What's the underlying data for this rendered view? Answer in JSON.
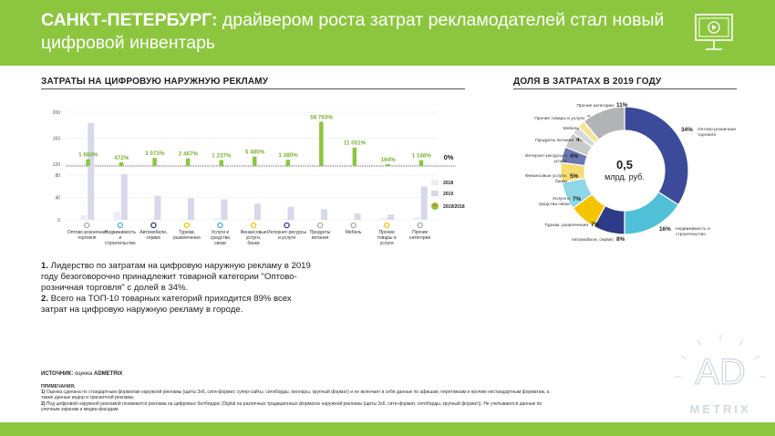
{
  "header": {
    "title_bold": "САНКТ-ПЕТЕРБУРГ:",
    "title_rest": " драйвером роста затрат рекламодателей стал новый цифровой инвентарь"
  },
  "left_section_title": "ЗАТРАТЫ НА ЦИФРОВУЮ НАРУЖНУЮ РЕКЛАМУ",
  "right_section_title": "ДОЛЯ В ЗАТРАТАХ В 2019 ГОДУ",
  "colors": {
    "accent_green": "#8cc63f",
    "bar_2018": "#eceef5",
    "bar_2019": "#d7d9ea",
    "navy": "#2e3b87",
    "teal": "#3fb5cc",
    "yellow": "#f5c400",
    "grey": "#a7a8ab"
  },
  "chart_data": [
    {
      "type": "bar",
      "title": "ЗАТРАТЫ НА ЦИФРОВУЮ НАРУЖНУЮ РЕКЛАМУ",
      "categories": [
        "Оптово-розничная торговля",
        "Недвижимость и строительство",
        "Автомобили, сервис",
        "Туризм, развлечения",
        "Услуги и средства связи",
        "Финансовые услуги, банки",
        "Интернет-ресурсы и услуги",
        "Продукты питания",
        "Мебель",
        "Прочие товары и услуги",
        "Прочие категории"
      ],
      "category_icon_colors": [
        "#a7a8ab",
        "#3fb5cc",
        "#2e3b87",
        "#f5c400",
        "#3fb5cc",
        "#f5c400",
        "#2e3b87",
        "#a7a8ab",
        "#a7a8ab",
        "#f5c400",
        "#a7a8ab"
      ],
      "series": [
        {
          "name": "2018",
          "values": [
            9,
            15,
            1.5,
            1.5,
            3,
            0.5,
            1.5,
            0.5,
            1,
            4,
            5
          ]
        },
        {
          "name": "2019",
          "values": [
            180,
            85,
            45,
            40,
            38,
            30,
            24,
            20,
            12,
            10,
            62
          ]
        }
      ],
      "ylim": [
        0,
        200
      ],
      "yticks": [
        0,
        40,
        80,
        120,
        160,
        200
      ],
      "growth_series": {
        "name": "2019/2018",
        "labels": [
          "1 684%",
          "472%",
          "3 073%",
          "2 467%",
          "1 237%",
          "5 485%",
          "1 380%",
          "58 703%",
          "11 051%",
          "164%",
          "1 148%"
        ],
        "values": [
          1684,
          472,
          3073,
          2467,
          1237,
          5485,
          1380,
          58703,
          11051,
          164,
          1148
        ],
        "zero_label": "0%"
      },
      "legend": [
        "2018",
        "2019",
        "2019/2018"
      ]
    },
    {
      "type": "pie",
      "title": "ДОЛЯ В ЗАТРАТАХ В 2019 ГОДУ",
      "center_value": "0,5",
      "center_unit": "млрд. руб.",
      "slices": [
        {
          "label": "Оптово-розничная торговля",
          "pct_label": "34%",
          "value": 34,
          "color": "#3b4a99"
        },
        {
          "label": "Недвижимость и строительство",
          "pct_label": "16%",
          "value": 16,
          "color": "#4fc0d8"
        },
        {
          "label": "Автомобили, сервис",
          "pct_label": "8%",
          "value": 8,
          "color": "#2e3b87"
        },
        {
          "label": "Туризм, развлечения",
          "pct_label": "7%",
          "value": 7,
          "color": "#f5c400"
        },
        {
          "label": "Услуги и средства связи",
          "pct_label": "7%",
          "value": 7,
          "color": "#8fd6e6"
        },
        {
          "label": "Финансовые услуги, банки",
          "pct_label": "5%",
          "value": 5,
          "color": "#f7db73"
        },
        {
          "label": "Интернет-ресурсы и услуги",
          "pct_label": "4%",
          "value": 4,
          "color": "#6b77b3"
        },
        {
          "label": "Продукты питания",
          "pct_label": "4%",
          "value": 4,
          "color": "#c9cacc"
        },
        {
          "label": "Мебель",
          "pct_label": "2%",
          "value": 2,
          "color": "#d6d7d9"
        },
        {
          "label": "Прочие товары и услуги",
          "pct_label": "2%",
          "value": 2,
          "color": "#f5e49a"
        },
        {
          "label": "Прочие категории",
          "pct_label": "11%",
          "value": 11,
          "color": "#b2b3b5"
        }
      ]
    }
  ],
  "notes": {
    "n1_num": "1.",
    "n1_text": " Лидерство по затратам на цифровую наружную рекламу в 2019 году безоговорочно принадлежит товарной категории \"Оптово-розничная торговля\" с долей в 34%.",
    "n2_num": "2.",
    "n2_text": " Всего на ТОП-10 товарных категорий приходится 89% всех затрат на цифровую наружную рекламу в городе."
  },
  "source": {
    "label": "ИСТОЧНИК:",
    "text": " оценка ",
    "brand": "ADMETRIX"
  },
  "footnotes": {
    "title": "ПРИМЕЧАНИЯ:",
    "f1_num": "1)",
    "f1_text": " Оценка сделана по стандартным форматам наружной рекламы (щиты 3х6, сити-формат, супер-сайты, ситиборды, пиллары, крупный формат) и не включает в себя данные по афишам, перетяжкам и прочим нестандартным форматам, а также данные индор и транзитной рекламы",
    "f2_num": "2)",
    "f2_text": " Под цифровой наружной рекламой понимается реклама на цифровых билбордах (Digital на различных традиционных форматах наружной рекламы (щиты 3х6, сити-формат, ситиборды, крупный формат)). Не учитываются данные по уличным экранам и медиа-фасадам."
  },
  "logo": {
    "line1": "AD",
    "line2": "METRIX"
  }
}
